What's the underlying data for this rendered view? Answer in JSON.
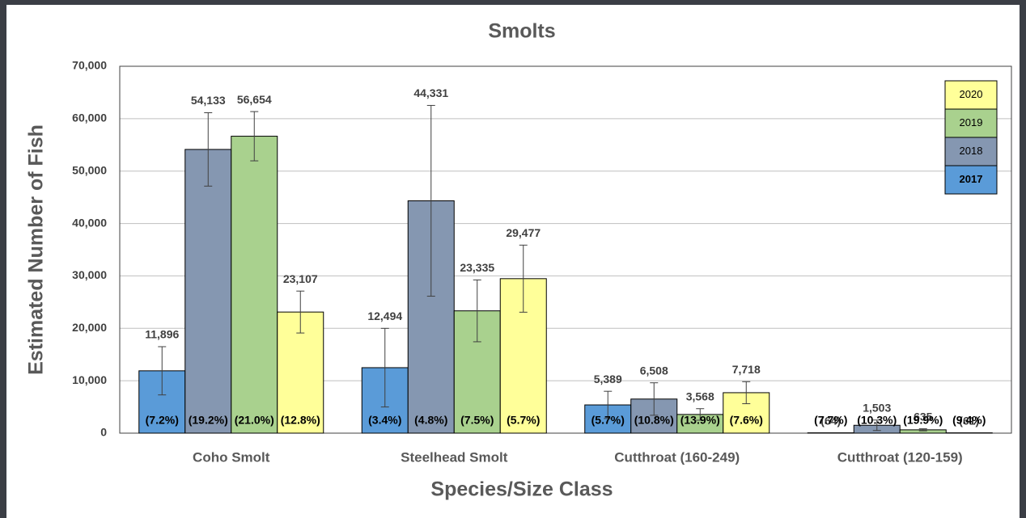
{
  "chart_data": {
    "type": "bar",
    "title": "Smolts",
    "x_label": "Species/Size Class",
    "y_label": "Estimated Number of Fish",
    "categories": [
      "Coho Smolt",
      "Steelhead Smolt",
      "Cutthroat (160-249)",
      "Cutthroat (120-159)"
    ],
    "series": [
      {
        "name": "2017",
        "color": "#5a9bd8",
        "values": [
          11896,
          12494,
          5389,
          64
        ],
        "value_labels": [
          "11,896",
          "12,494",
          "5,389",
          "(64)"
        ],
        "errors": [
          4600,
          7500,
          2600,
          null
        ],
        "cv_labels": [
          "(7.2%)",
          "(3.4%)",
          "(5.7%)",
          "(7.7%)"
        ]
      },
      {
        "name": "2018",
        "color": "#8597b1",
        "values": [
          54133,
          44331,
          6508,
          1503
        ],
        "value_labels": [
          "54,133",
          "44,331",
          "6,508",
          "1,503"
        ],
        "errors": [
          7000,
          18200,
          3100,
          1000
        ],
        "cv_labels": [
          "(19.2%)",
          "(4.8%)",
          "(10.8%)",
          "(10.3%)"
        ]
      },
      {
        "name": "2019",
        "color": "#a9d18e",
        "values": [
          56654,
          23335,
          3568,
          635
        ],
        "value_labels": [
          "56,654",
          "23,335",
          "3,568",
          "635"
        ],
        "errors": [
          4700,
          5900,
          1100,
          200
        ],
        "cv_labels": [
          "(21.0%)",
          "(7.5%)",
          "(13.9%)",
          "(19.9%)"
        ]
      },
      {
        "name": "2020",
        "color": "#ffff99",
        "values": [
          23107,
          29477,
          7718,
          61
        ],
        "value_labels": [
          "23,107",
          "29,477",
          "7,718",
          "(61)"
        ],
        "errors": [
          4000,
          6400,
          2100,
          null
        ],
        "cv_labels": [
          "(12.8%)",
          "(5.7%)",
          "(7.6%)",
          "(9.4%)"
        ]
      }
    ],
    "ylim": [
      0,
      70000
    ],
    "yticks": [
      0,
      {
        "value": 10000,
        "label": "10,000"
      },
      {
        "value": 20000,
        "label": "20,000"
      },
      {
        "value": 30000,
        "label": "30,000"
      },
      {
        "value": 40000,
        "label": "40,000"
      },
      {
        "value": 50000,
        "label": "50,000"
      },
      {
        "value": 60000,
        "label": "60,000"
      },
      {
        "value": 70000,
        "label": "70,000"
      }
    ],
    "grid": true,
    "legend": "top-right"
  }
}
